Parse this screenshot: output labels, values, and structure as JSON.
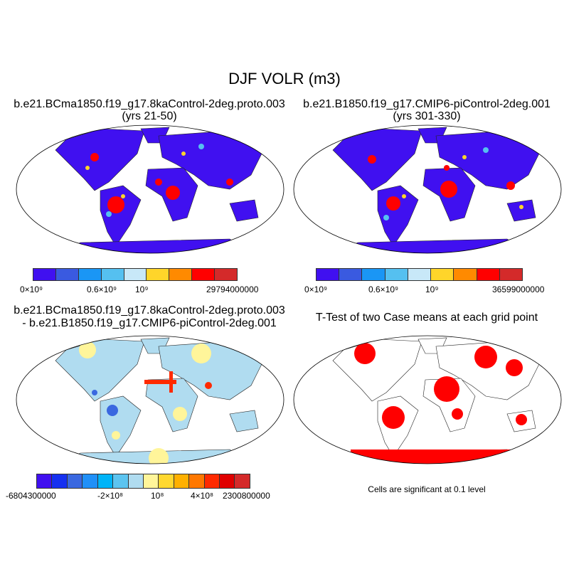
{
  "title": "DJF VOLR (m3)",
  "panels": [
    {
      "title1": "b.e21.BCma1850.f19_g17.8kaControl-2deg.proto.003",
      "title2": "(yrs 21-50)",
      "colorbar": {
        "colors": [
          "#4010f0",
          "#3a5ae0",
          "#1a96f5",
          "#55c0f0",
          "#c8e8f8",
          "#ffd52a",
          "#ff8a00",
          "#ff0000",
          "#d42a2a"
        ],
        "labels": [
          "0×10⁹",
          "0.6×10⁹",
          "10⁹",
          "29794000000"
        ]
      }
    },
    {
      "title1": "b.e21.B1850.f19_g17.CMIP6-piControl-2deg.001",
      "title2": "(yrs 301-330)",
      "colorbar": {
        "colors": [
          "#4010f0",
          "#3a5ae0",
          "#1a96f5",
          "#55c0f0",
          "#c8e8f8",
          "#ffd52a",
          "#ff8a00",
          "#ff0000",
          "#d42a2a"
        ],
        "labels": [
          "0×10⁹",
          "0.6×10⁹",
          "10⁹",
          "36599000000"
        ]
      }
    },
    {
      "title1": "b.e21.BCma1850.f19_g17.8kaControl-2deg.proto.003",
      "title2": "- b.e21.B1850.f19_g17.CMIP6-piControl-2deg.001",
      "colorbar": {
        "colors": [
          "#4010f0",
          "#1530f0",
          "#3a68e0",
          "#2090f8",
          "#00b4f8",
          "#5cc4f0",
          "#b0dcf0",
          "#fff59a",
          "#ffd830",
          "#ffb000",
          "#ff7800",
          "#ff2a00",
          "#e00000",
          "#d42a2a"
        ],
        "labels": [
          "-6804300000",
          "-2×10⁸",
          "10⁸",
          "4×10⁸",
          "2300800000"
        ]
      }
    },
    {
      "title1": "T-Test of two Case means at each grid point",
      "note": "Cells are significant at 0.1 level"
    }
  ]
}
